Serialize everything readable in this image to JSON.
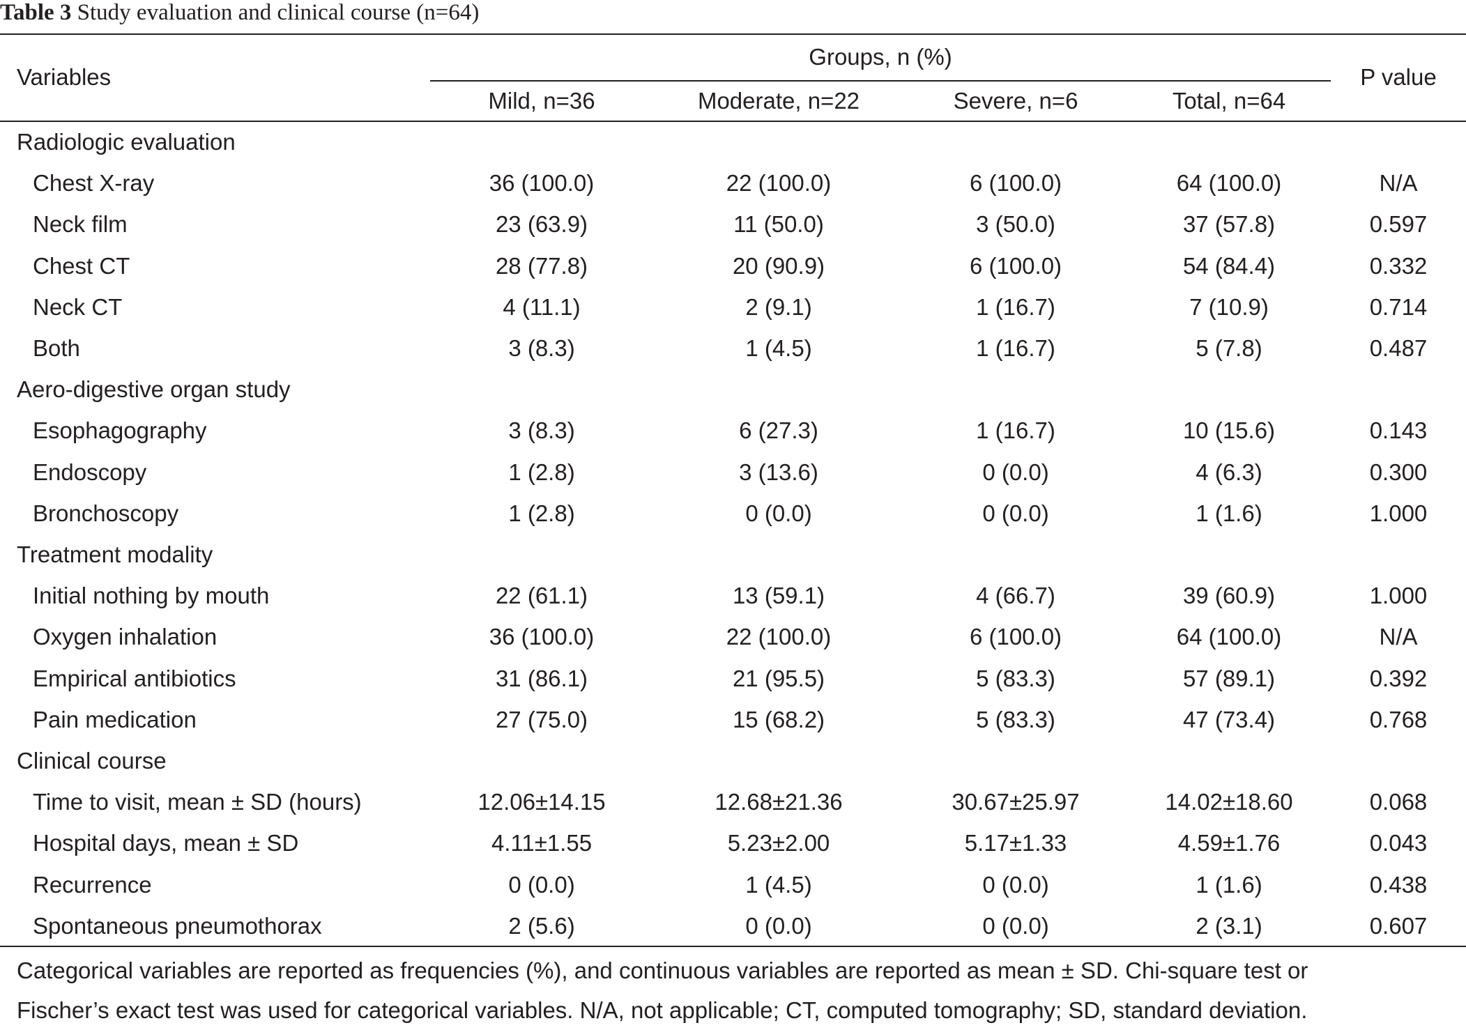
{
  "caption": {
    "label": "Table 3",
    "text": "Study evaluation and clinical course (n=64)"
  },
  "header": {
    "variables": "Variables",
    "groups": "Groups, n (%)",
    "p_value": "P value",
    "columns": [
      "Mild, n=36",
      "Moderate, n=22",
      "Severe, n=6",
      "Total, n=64"
    ]
  },
  "rows": [
    {
      "kind": "section",
      "label": "Radiologic evaluation"
    },
    {
      "kind": "item",
      "label": "Chest X-ray",
      "mild": "36 (100.0)",
      "moderate": "22 (100.0)",
      "severe": "6 (100.0)",
      "total": "64 (100.0)",
      "p": "N/A"
    },
    {
      "kind": "item",
      "label": "Neck film",
      "mild": "23 (63.9)",
      "moderate": "11 (50.0)",
      "severe": "3 (50.0)",
      "total": "37 (57.8)",
      "p": "0.597"
    },
    {
      "kind": "item",
      "label": "Chest CT",
      "mild": "28 (77.8)",
      "moderate": "20 (90.9)",
      "severe": "6 (100.0)",
      "total": "54 (84.4)",
      "p": "0.332"
    },
    {
      "kind": "item",
      "label": "Neck CT",
      "mild": "4 (11.1)",
      "moderate": "2 (9.1)",
      "severe": "1 (16.7)",
      "total": "7 (10.9)",
      "p": "0.714"
    },
    {
      "kind": "item",
      "label": "Both",
      "mild": "3 (8.3)",
      "moderate": "1 (4.5)",
      "severe": "1 (16.7)",
      "total": "5 (7.8)",
      "p": "0.487"
    },
    {
      "kind": "section",
      "label": "Aero-digestive organ study"
    },
    {
      "kind": "item",
      "label": "Esophagography",
      "mild": "3 (8.3)",
      "moderate": "6 (27.3)",
      "severe": "1 (16.7)",
      "total": "10 (15.6)",
      "p": "0.143"
    },
    {
      "kind": "item",
      "label": "Endoscopy",
      "mild": "1 (2.8)",
      "moderate": "3 (13.6)",
      "severe": "0 (0.0)",
      "total": "4 (6.3)",
      "p": "0.300"
    },
    {
      "kind": "item",
      "label": "Bronchoscopy",
      "mild": "1 (2.8)",
      "moderate": "0 (0.0)",
      "severe": "0 (0.0)",
      "total": "1 (1.6)",
      "p": "1.000"
    },
    {
      "kind": "section",
      "label": "Treatment modality"
    },
    {
      "kind": "item",
      "label": "Initial nothing by mouth",
      "mild": "22 (61.1)",
      "moderate": "13 (59.1)",
      "severe": "4 (66.7)",
      "total": "39 (60.9)",
      "p": "1.000"
    },
    {
      "kind": "item",
      "label": "Oxygen inhalation",
      "mild": "36 (100.0)",
      "moderate": "22 (100.0)",
      "severe": "6 (100.0)",
      "total": "64 (100.0)",
      "p": "N/A"
    },
    {
      "kind": "item",
      "label": "Empirical antibiotics",
      "mild": "31 (86.1)",
      "moderate": "21 (95.5)",
      "severe": "5 (83.3)",
      "total": "57 (89.1)",
      "p": "0.392"
    },
    {
      "kind": "item",
      "label": "Pain medication",
      "mild": "27 (75.0)",
      "moderate": "15 (68.2)",
      "severe": "5 (83.3)",
      "total": "47 (73.4)",
      "p": "0.768"
    },
    {
      "kind": "section",
      "label": "Clinical course"
    },
    {
      "kind": "item",
      "label": "Time to visit, mean ± SD (hours)",
      "mild": "12.06±14.15",
      "moderate": "12.68±21.36",
      "severe": "30.67±25.97",
      "total": "14.02±18.60",
      "p": "0.068"
    },
    {
      "kind": "item",
      "label": "Hospital days, mean ± SD",
      "mild": "4.11±1.55",
      "moderate": "5.23±2.00",
      "severe": "5.17±1.33",
      "total": "4.59±1.76",
      "p": "0.043"
    },
    {
      "kind": "item",
      "label": "Recurrence",
      "mild": "0 (0.0)",
      "moderate": "1 (4.5)",
      "severe": "0 (0.0)",
      "total": "1 (1.6)",
      "p": "0.438"
    },
    {
      "kind": "item",
      "label": "Spontaneous pneumothorax",
      "mild": "2 (5.6)",
      "moderate": "0 (0.0)",
      "severe": "0 (0.0)",
      "total": "2 (3.1)",
      "p": "0.607"
    }
  ],
  "footnote": {
    "line1": "Categorical variables are reported as frequencies (%), and continuous variables are reported as mean ± SD. Chi-square test or",
    "line2": "Fischer’s exact test was used for categorical variables. N/A, not applicable; CT, computed tomography; SD, standard deviation."
  }
}
